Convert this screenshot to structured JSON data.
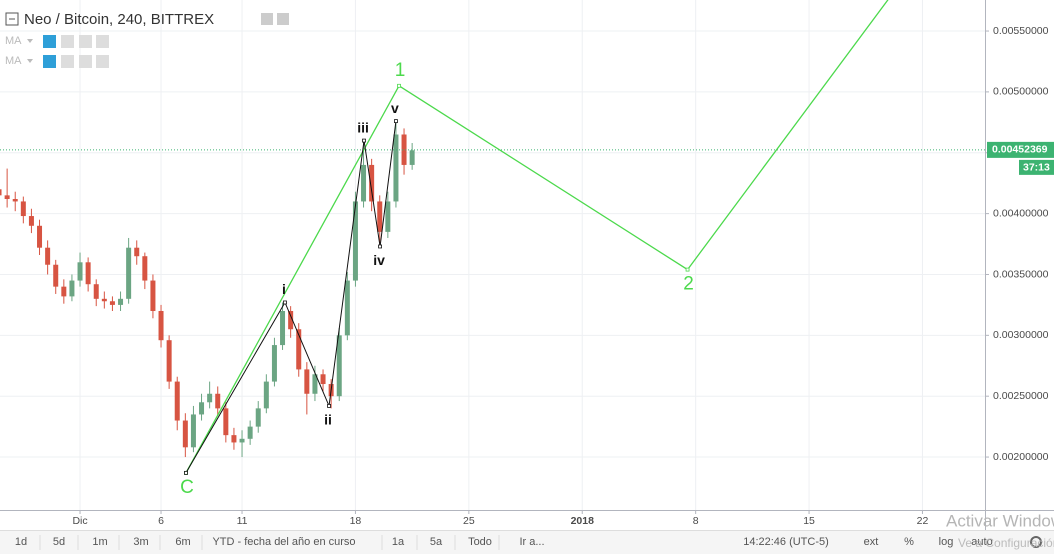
{
  "chart_data": {
    "type": "candlestick",
    "title": "Neo / Bitcoin, 240, BITTREX",
    "indicators": [
      "MA",
      "MA"
    ],
    "up_color": "#6ba583",
    "down_color": "#d75442",
    "x": [
      -5,
      -4.5,
      -4,
      -3.5,
      -3,
      -2.5,
      -2,
      -1.5,
      -1,
      -0.5,
      0,
      0.5,
      1,
      1.5,
      2,
      2.5,
      3,
      3.5,
      4,
      4.5,
      5,
      5.5,
      6,
      6.5,
      7,
      7.5,
      8,
      8.5,
      9,
      9.5,
      10,
      10.5,
      11,
      11.5,
      12,
      12.5,
      13,
      13.5,
      14,
      14.5,
      15,
      15.5,
      16,
      16.5,
      17,
      17.5,
      18,
      18.5,
      19,
      19.5,
      20,
      20.5
    ],
    "open": [
      0.0042,
      0.00415,
      0.00412,
      0.0041,
      0.00398,
      0.0039,
      0.00372,
      0.00358,
      0.0034,
      0.00332,
      0.00345,
      0.0036,
      0.00342,
      0.0033,
      0.00328,
      0.00325,
      0.0033,
      0.00372,
      0.00365,
      0.00345,
      0.0032,
      0.00296,
      0.00262,
      0.0023,
      0.00208,
      0.00235,
      0.00245,
      0.00252,
      0.0024,
      0.00218,
      0.00212,
      0.00215,
      0.00225,
      0.0024,
      0.00262,
      0.00292,
      0.0032,
      0.00305,
      0.00272,
      0.00252,
      0.00268,
      0.0026,
      0.0025,
      0.003,
      0.00345,
      0.0041,
      0.0044,
      0.0041,
      0.00385,
      0.0041,
      0.00465,
      0.0044
    ],
    "high": [
      0.00428,
      0.00437,
      0.00418,
      0.00414,
      0.00404,
      0.00395,
      0.00378,
      0.00362,
      0.00346,
      0.0035,
      0.00368,
      0.00364,
      0.00346,
      0.00336,
      0.00332,
      0.00336,
      0.0038,
      0.00378,
      0.00368,
      0.0035,
      0.00325,
      0.003,
      0.00266,
      0.00236,
      0.00242,
      0.00252,
      0.00262,
      0.00258,
      0.00245,
      0.00224,
      0.00222,
      0.0023,
      0.00246,
      0.00268,
      0.00298,
      0.00327,
      0.00324,
      0.0031,
      0.00278,
      0.00275,
      0.00272,
      0.00264,
      0.00306,
      0.00352,
      0.00418,
      0.00459,
      0.00445,
      0.00415,
      0.00418,
      0.00477,
      0.0047,
      0.00458
    ],
    "low": [
      0.00408,
      0.00405,
      0.00402,
      0.00392,
      0.00384,
      0.00366,
      0.0035,
      0.00334,
      0.00326,
      0.00328,
      0.0034,
      0.00336,
      0.00324,
      0.00322,
      0.0032,
      0.0032,
      0.00326,
      0.00358,
      0.00338,
      0.00314,
      0.0029,
      0.00256,
      0.00222,
      0.002,
      0.00204,
      0.0023,
      0.0024,
      0.00234,
      0.00212,
      0.00206,
      0.002,
      0.0021,
      0.0022,
      0.00236,
      0.00258,
      0.00288,
      0.00298,
      0.00266,
      0.00235,
      0.00246,
      0.00254,
      0.0024,
      0.00246,
      0.00296,
      0.0034,
      0.00405,
      0.00402,
      0.00373,
      0.0038,
      0.00405,
      0.00432,
      0.00436
    ],
    "close": [
      0.00415,
      0.00412,
      0.0041,
      0.00398,
      0.0039,
      0.00372,
      0.00358,
      0.0034,
      0.00332,
      0.00345,
      0.0036,
      0.00342,
      0.0033,
      0.00328,
      0.00325,
      0.0033,
      0.00372,
      0.00365,
      0.00345,
      0.0032,
      0.00296,
      0.00262,
      0.0023,
      0.00208,
      0.00235,
      0.00245,
      0.00252,
      0.0024,
      0.00218,
      0.00212,
      0.00215,
      0.00225,
      0.0024,
      0.00262,
      0.00292,
      0.0032,
      0.00305,
      0.00272,
      0.00252,
      0.00268,
      0.0026,
      0.0025,
      0.003,
      0.00345,
      0.0041,
      0.0044,
      0.0041,
      0.00385,
      0.0041,
      0.00465,
      0.0044,
      0.00452
    ],
    "xlim": [
      -4.94,
      55.86
    ],
    "ylim": [
      0.001565,
      0.005755
    ],
    "xticks": [
      {
        "value": 0,
        "label": "Dic"
      },
      {
        "value": 5,
        "label": "6"
      },
      {
        "value": 10,
        "label": "11"
      },
      {
        "value": 17,
        "label": "18"
      },
      {
        "value": 24,
        "label": "25"
      },
      {
        "value": 31,
        "label": "2018"
      },
      {
        "value": 38,
        "label": "8"
      },
      {
        "value": 45,
        "label": "15"
      },
      {
        "value": 52,
        "label": "22"
      }
    ],
    "yticks": [
      {
        "value": 0.002,
        "label": "0.00200000"
      },
      {
        "value": 0.0025,
        "label": "0.00250000"
      },
      {
        "value": 0.003,
        "label": "0.00300000"
      },
      {
        "value": 0.0035,
        "label": "0.00350000"
      },
      {
        "value": 0.004,
        "label": "0.00400000"
      },
      {
        "value": 0.0045,
        "label": "0.00450000"
      },
      {
        "value": 0.005,
        "label": "0.00500000"
      },
      {
        "value": 0.0055,
        "label": "0.00550000"
      }
    ],
    "grid": true,
    "last_price": 0.00452369,
    "countdown": "37:13",
    "waves": [
      {
        "color": "#4cd94c",
        "x": [
          6.54,
          19.69,
          37.5,
          50
        ],
        "y": [
          0.00187,
          0.00505,
          0.00354,
          0.00578
        ],
        "labels": [
          "C",
          "1",
          "2",
          null
        ]
      },
      {
        "color": "#111111",
        "x": [
          6.54,
          12.65,
          15.37,
          17.53,
          18.52,
          19.5
        ],
        "y": [
          0.00187,
          0.00327,
          0.00242,
          0.0046,
          0.00373,
          0.00476
        ],
        "labels": [
          null,
          "i",
          "ii",
          "iii",
          "iv",
          "v"
        ]
      }
    ]
  },
  "toolbar": {
    "ranges": [
      "1d",
      "5d",
      "1m",
      "3m",
      "6m",
      "YTD - fecha del año en curso",
      "1a",
      "5a",
      "Todo",
      "Ir a..."
    ],
    "time": "14:22:46 (UTC-5)",
    "options": [
      "ext",
      "%",
      "log",
      "auto"
    ]
  },
  "watermark": [
    "Activar Windows",
    "Ve a Configuración"
  ]
}
